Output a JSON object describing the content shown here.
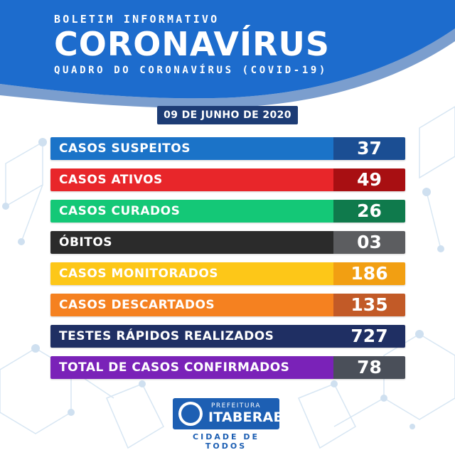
{
  "header": {
    "kicker": "BOLETIM INFORMATIVO",
    "title": "CORONAVÍRUS",
    "subtitle": "QUADRO DO CORONAVÍRUS (COVID-19)"
  },
  "date": "09 DE JUNHO DE 2020",
  "stats": [
    {
      "label": "CASOS SUSPEITOS",
      "value": "37",
      "color": "#1b73c8",
      "value_color": "#1b4e93"
    },
    {
      "label": "CASOS ATIVOS",
      "value": "49",
      "color": "#e8262a",
      "value_color": "#a80f12"
    },
    {
      "label": "CASOS CURADOS",
      "value": "26",
      "color": "#14c877",
      "value_color": "#0f7a4c"
    },
    {
      "label": "ÓBITOS",
      "value": "03",
      "color": "#2b2b2b",
      "value_color": "#5c5d60"
    },
    {
      "label": "CASOS MONITORADOS",
      "value": "186",
      "color": "#fdc718",
      "value_color": "#f29f12"
    },
    {
      "label": "CASOS DESCARTADOS",
      "value": "135",
      "color": "#f58120",
      "value_color": "#c25a27"
    },
    {
      "label": "TESTES RÁPIDOS REALIZADOS",
      "value": "727",
      "color": "#1f2f63",
      "value_color": "#1f2f63"
    },
    {
      "label": "TOTAL DE CASOS CONFIRMADOS",
      "value": "78",
      "color": "#7a22b8",
      "value_color": "#4a4f59"
    }
  ],
  "footer": {
    "prefeitura": "PREFEITURA",
    "city": "ITABERABA",
    "slogan": "CIDADE DE TODOS"
  },
  "colors": {
    "header_blue": "#1d6ccd",
    "date_badge": "#1d3c75"
  }
}
